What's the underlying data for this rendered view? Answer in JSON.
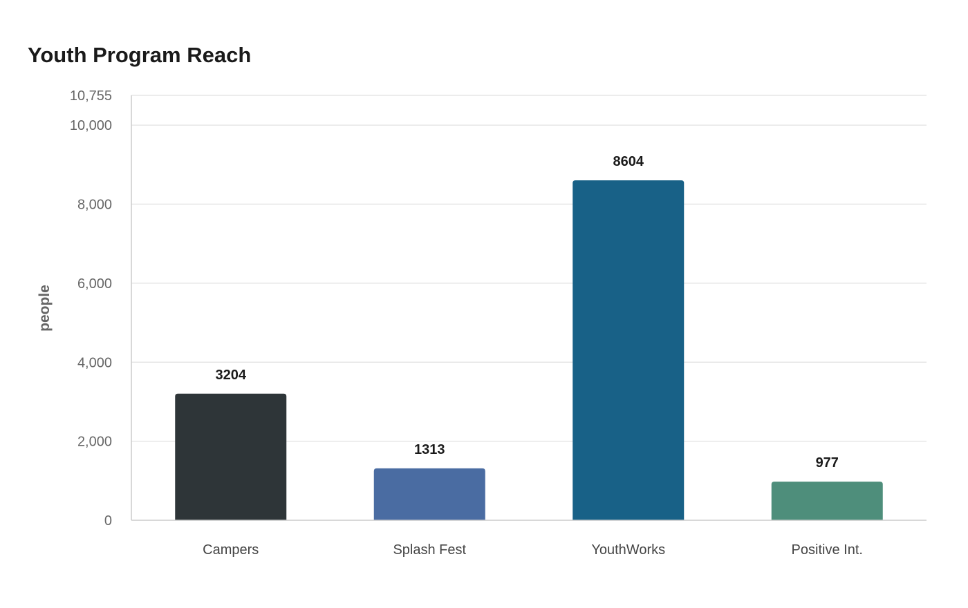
{
  "chart_data": {
    "type": "bar",
    "title": "Youth Program Reach",
    "ylabel": "people",
    "xlabel": "",
    "categories": [
      "Campers",
      "Splash Fest",
      "YouthWorks",
      "Positive Int."
    ],
    "values": [
      3204,
      1313,
      8604,
      977
    ],
    "data_labels": [
      "3204",
      "1313",
      "8604",
      "977"
    ],
    "colors": [
      "#2e3538",
      "#4a6ca2",
      "#186187",
      "#4e8e7b"
    ],
    "ylim": [
      0,
      10755
    ],
    "yticks": [
      0,
      2000,
      4000,
      6000,
      8000,
      10000,
      10755
    ],
    "ytick_labels": [
      "0",
      "2,000",
      "4,000",
      "6,000",
      "8,000",
      "10,000",
      "10,755"
    ],
    "grid": true,
    "legend": "none"
  }
}
